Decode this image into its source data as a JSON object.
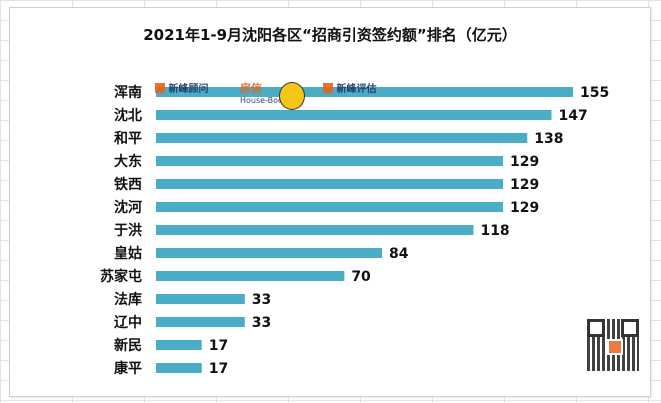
{
  "chart_data": {
    "type": "bar",
    "orientation": "horizontal",
    "title": "2021年1-9月沈阳各区“招商引资签约额”排名（亿元）",
    "categories": [
      "浑南",
      "沈北",
      "和平",
      "大东",
      "铁西",
      "沈河",
      "于洪",
      "皇姑",
      "苏家屯",
      "法库",
      "辽中",
      "新民",
      "康平"
    ],
    "values": [
      155,
      147,
      138,
      129,
      129,
      129,
      118,
      84,
      70,
      33,
      33,
      17,
      17
    ],
    "xlim": [
      0,
      155
    ],
    "bar_color": "#4aacc5",
    "gridlines": false,
    "legend": "none"
  },
  "watermark": {
    "logo_left": "新峰顾问",
    "logo_mid": "房信",
    "logo_mid_sub": "House-Book",
    "logo_right": "新峰评估"
  }
}
